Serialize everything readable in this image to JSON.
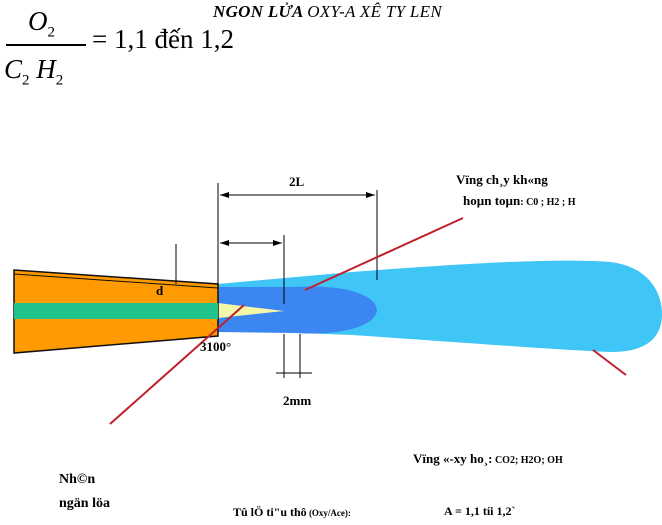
{
  "title": {
    "bold": "NGON LỬA",
    "rest": "OXY-A XÊ TY LEN"
  },
  "formula": {
    "numerator_symbol": "O",
    "numerator_sub": "2",
    "denominator_c": "C",
    "denominator_c_sub": "2",
    "denominator_h": "H",
    "denominator_h_sub": "2",
    "rhs": "= 1,1 đến 1,2"
  },
  "labels": {
    "length_2L": "2L",
    "diameter": "d",
    "temperature": "3100°",
    "dim_2mm": "2mm",
    "zone_incomplete_line1": "Vïng ch¸y kh«ng",
    "zone_incomplete_line2": "hoµn toµn",
    "zone_incomplete_species": ": C0 ; H2 ; H",
    "zone_oxidation": "Vïng «-xy ho¸:",
    "zone_oxidation_species": " CO2; H2O; OH",
    "core_line1": "Nh©n",
    "core_line2": "ngän löa",
    "ratio_label": "Tû lÖ ti\"u thô",
    "ratio_label_small": " (Oxy/Ace):",
    "ratio_value": "A = 1,1 tíi 1,2`"
  },
  "colors": {
    "nozzle_body": "#ff9a00",
    "nozzle_channel": "#22c28c",
    "flame_outer": "#3fc6f6",
    "flame_core_zone": "#3b86f0",
    "flame_inner_cone": "#f4f6a8",
    "pointer_line": "#c0202a"
  }
}
